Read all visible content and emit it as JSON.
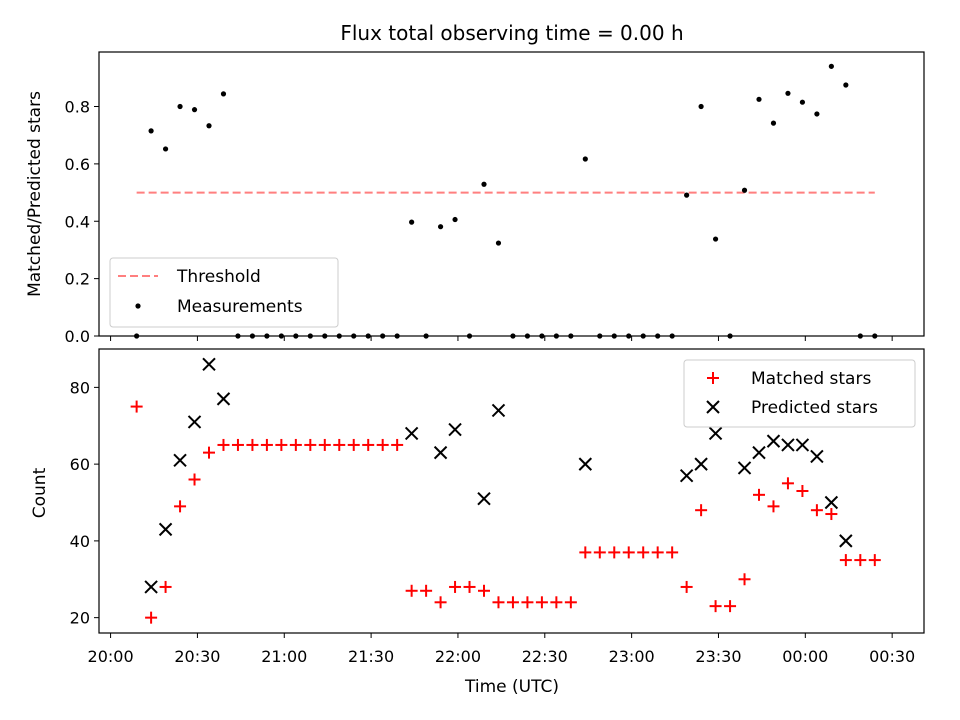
{
  "chart_data": [
    {
      "type": "scatter",
      "title": "Flux total observing time = 0.00 h",
      "xlabel": "",
      "ylabel": "Matched/Predicted stars",
      "xlim": [
        "19:56",
        "00:41"
      ],
      "ylim": [
        0,
        0.99
      ],
      "yticks": [
        0.0,
        0.2,
        0.4,
        0.6,
        0.8
      ],
      "ytick_labels": [
        "0.0",
        "0.2",
        "0.4",
        "0.6",
        "0.8"
      ],
      "legend": {
        "position": "lower-left",
        "entries": [
          "Threshold",
          "Measurements"
        ]
      },
      "threshold": {
        "name": "Threshold",
        "x": [
          "20:09",
          "00:24"
        ],
        "y": 0.5,
        "color": "#ff7f7f",
        "style": "dashed"
      },
      "series": [
        {
          "name": "Measurements",
          "color": "#000000",
          "marker": "dot",
          "points": [
            [
              "20:09",
              0.0
            ],
            [
              "20:14",
              0.715
            ],
            [
              "20:19",
              0.652
            ],
            [
              "20:24",
              0.8
            ],
            [
              "20:29",
              0.789
            ],
            [
              "20:34",
              0.733
            ],
            [
              "20:39",
              0.844
            ],
            [
              "20:44",
              0.0
            ],
            [
              "20:49",
              0.0
            ],
            [
              "20:54",
              0.0
            ],
            [
              "20:59",
              0.0
            ],
            [
              "21:04",
              0.0
            ],
            [
              "21:09",
              0.0
            ],
            [
              "21:14",
              0.0
            ],
            [
              "21:19",
              0.0
            ],
            [
              "21:24",
              0.0
            ],
            [
              "21:29",
              0.0
            ],
            [
              "21:34",
              0.0
            ],
            [
              "21:39",
              0.0
            ],
            [
              "21:44",
              0.397
            ],
            [
              "21:49",
              0.0
            ],
            [
              "21:54",
              0.381
            ],
            [
              "21:59",
              0.406
            ],
            [
              "22:04",
              0.0
            ],
            [
              "22:09",
              0.529
            ],
            [
              "22:14",
              0.324
            ],
            [
              "22:19",
              0.0
            ],
            [
              "22:24",
              0.0
            ],
            [
              "22:29",
              0.0
            ],
            [
              "22:34",
              0.0
            ],
            [
              "22:39",
              0.0
            ],
            [
              "22:44",
              0.617
            ],
            [
              "22:49",
              0.0
            ],
            [
              "22:54",
              0.0
            ],
            [
              "22:59",
              0.0
            ],
            [
              "23:04",
              0.0
            ],
            [
              "23:09",
              0.0
            ],
            [
              "23:14",
              0.0
            ],
            [
              "23:19",
              0.491
            ],
            [
              "23:24",
              0.8
            ],
            [
              "23:29",
              0.338
            ],
            [
              "23:34",
              0.0
            ],
            [
              "23:39",
              0.508
            ],
            [
              "23:44",
              0.825
            ],
            [
              "23:49",
              0.742
            ],
            [
              "23:54",
              0.846
            ],
            [
              "23:59",
              0.815
            ],
            [
              "00:04",
              0.774
            ],
            [
              "00:09",
              0.94
            ],
            [
              "00:14",
              0.875
            ],
            [
              "00:19",
              0.0
            ],
            [
              "00:24",
              0.0
            ]
          ]
        }
      ]
    },
    {
      "type": "scatter",
      "title": "",
      "xlabel": "Time (UTC)",
      "ylabel": "Count",
      "xlim": [
        "19:56",
        "00:41"
      ],
      "ylim": [
        16,
        90
      ],
      "yticks": [
        20,
        40,
        60,
        80
      ],
      "ytick_labels": [
        "20",
        "40",
        "60",
        "80"
      ],
      "xticks": [
        "20:00",
        "20:30",
        "21:00",
        "21:30",
        "22:00",
        "22:30",
        "23:00",
        "23:30",
        "00:00",
        "00:30"
      ],
      "legend": {
        "position": "upper-right",
        "entries": [
          "Matched stars",
          "Predicted stars"
        ]
      },
      "series": [
        {
          "name": "Matched stars",
          "color": "#ff0000",
          "marker": "plus",
          "points": [
            [
              "20:09",
              75
            ],
            [
              "20:14",
              20
            ],
            [
              "20:19",
              28
            ],
            [
              "20:24",
              49
            ],
            [
              "20:29",
              56
            ],
            [
              "20:34",
              63
            ],
            [
              "20:39",
              65
            ],
            [
              "20:44",
              65
            ],
            [
              "20:49",
              65
            ],
            [
              "20:54",
              65
            ],
            [
              "20:59",
              65
            ],
            [
              "21:04",
              65
            ],
            [
              "21:09",
              65
            ],
            [
              "21:14",
              65
            ],
            [
              "21:19",
              65
            ],
            [
              "21:24",
              65
            ],
            [
              "21:29",
              65
            ],
            [
              "21:34",
              65
            ],
            [
              "21:39",
              65
            ],
            [
              "21:44",
              27
            ],
            [
              "21:49",
              27
            ],
            [
              "21:54",
              24
            ],
            [
              "21:59",
              28
            ],
            [
              "22:04",
              28
            ],
            [
              "22:09",
              27
            ],
            [
              "22:14",
              24
            ],
            [
              "22:19",
              24
            ],
            [
              "22:24",
              24
            ],
            [
              "22:29",
              24
            ],
            [
              "22:34",
              24
            ],
            [
              "22:39",
              24
            ],
            [
              "22:44",
              37
            ],
            [
              "22:49",
              37
            ],
            [
              "22:54",
              37
            ],
            [
              "22:59",
              37
            ],
            [
              "23:04",
              37
            ],
            [
              "23:09",
              37
            ],
            [
              "23:14",
              37
            ],
            [
              "23:19",
              28
            ],
            [
              "23:24",
              48
            ],
            [
              "23:29",
              23
            ],
            [
              "23:34",
              23
            ],
            [
              "23:39",
              30
            ],
            [
              "23:44",
              52
            ],
            [
              "23:49",
              49
            ],
            [
              "23:54",
              55
            ],
            [
              "23:59",
              53
            ],
            [
              "00:04",
              48
            ],
            [
              "00:09",
              47
            ],
            [
              "00:14",
              35
            ],
            [
              "00:19",
              35
            ],
            [
              "00:24",
              35
            ]
          ]
        },
        {
          "name": "Predicted stars",
          "color": "#000000",
          "marker": "x",
          "points": [
            [
              "20:14",
              28
            ],
            [
              "20:19",
              43
            ],
            [
              "20:24",
              61
            ],
            [
              "20:29",
              71
            ],
            [
              "20:34",
              86
            ],
            [
              "20:39",
              77
            ],
            [
              "21:44",
              68
            ],
            [
              "21:54",
              63
            ],
            [
              "21:59",
              69
            ],
            [
              "22:09",
              51
            ],
            [
              "22:14",
              74
            ],
            [
              "22:44",
              60
            ],
            [
              "23:19",
              57
            ],
            [
              "23:24",
              60
            ],
            [
              "23:29",
              68
            ],
            [
              "23:39",
              59
            ],
            [
              "23:44",
              63
            ],
            [
              "23:49",
              66
            ],
            [
              "23:54",
              65
            ],
            [
              "23:59",
              65
            ],
            [
              "00:04",
              62
            ],
            [
              "00:09",
              50
            ],
            [
              "00:14",
              40
            ]
          ]
        }
      ]
    }
  ]
}
